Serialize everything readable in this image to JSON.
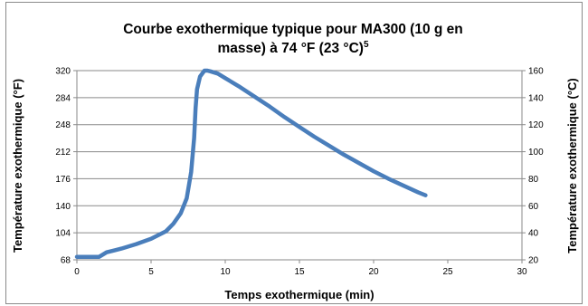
{
  "chart_data": {
    "type": "line",
    "title_line1": "Courbe exothermique typique pour MA300 (10 g en",
    "title_line2": "masse) à 74 °F (23 °C)",
    "title_superscript": "5",
    "xlabel": "Temps exothermique (min)",
    "ylabel_left": "Température exothermique (°F)",
    "ylabel_right": "Température exothermique (°C)",
    "xlim": [
      0,
      30
    ],
    "ylim_left": [
      68,
      320
    ],
    "ylim_right": [
      20,
      160
    ],
    "x_ticks": [
      "0",
      "5",
      "10",
      "15",
      "20",
      "25",
      "30"
    ],
    "y_ticks_left": [
      "68",
      "104",
      "140",
      "176",
      "212",
      "248",
      "284",
      "320"
    ],
    "y_ticks_right": [
      "20",
      "40",
      "60",
      "80",
      "100",
      "120",
      "140",
      "160"
    ],
    "grid": "horizontal",
    "line_color": "#4a7ebb",
    "series": [
      {
        "x": [
          0,
          0.5,
          1.0,
          1.5,
          2.0,
          3.0,
          4.0,
          5.0,
          6.0,
          6.5,
          7.0,
          7.4,
          7.7,
          7.9,
          8.0,
          8.1,
          8.3,
          8.6,
          8.8,
          9.0,
          9.5,
          10,
          11,
          12,
          13,
          14,
          15,
          16,
          17,
          18,
          19,
          20,
          21,
          22,
          23,
          23.5
        ],
        "y": [
          72,
          72,
          72,
          72,
          78,
          83,
          89,
          96,
          106,
          116,
          130,
          150,
          185,
          230,
          270,
          295,
          312,
          320,
          320,
          319,
          316,
          310,
          298,
          285,
          272,
          258,
          245,
          232,
          220,
          208,
          197,
          186,
          176,
          167,
          158,
          154
        ]
      }
    ]
  }
}
